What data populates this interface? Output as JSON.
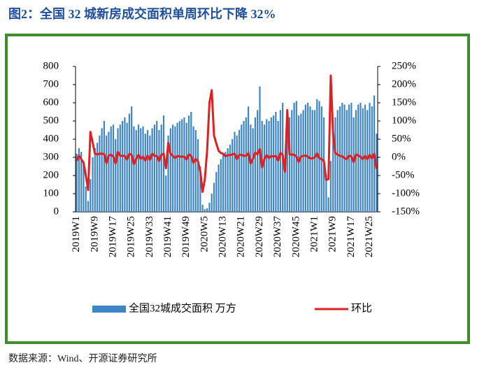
{
  "title": "图2：全国 32 城新房成交面积单周环比下降 32%",
  "source": "数据来源：Wind、开源证券研究所",
  "chart_data": {
    "type": "bar-line",
    "categories": [
      "2019W1",
      null,
      null,
      null,
      null,
      null,
      null,
      null,
      "2019W9",
      null,
      null,
      null,
      null,
      null,
      null,
      null,
      "2019W17",
      null,
      null,
      null,
      null,
      null,
      null,
      null,
      "2019W25",
      null,
      null,
      null,
      null,
      null,
      null,
      null,
      "2019W33",
      null,
      null,
      null,
      null,
      null,
      null,
      null,
      "2019W41",
      null,
      null,
      null,
      null,
      null,
      null,
      null,
      "2019W49",
      null,
      null,
      null,
      null,
      null,
      null,
      null,
      "2020W5",
      null,
      null,
      null,
      null,
      null,
      null,
      null,
      "2020W13",
      null,
      null,
      null,
      null,
      null,
      null,
      null,
      "2020W21",
      null,
      null,
      null,
      null,
      null,
      null,
      null,
      "2020W29",
      null,
      null,
      null,
      null,
      null,
      null,
      null,
      "2020W37",
      null,
      null,
      null,
      null,
      null,
      null,
      null,
      "2020W45",
      null,
      null,
      null,
      null,
      null,
      null,
      null,
      "2021W1",
      null,
      null,
      null,
      null,
      null,
      null,
      null,
      "2021W9",
      null,
      null,
      null,
      null,
      null,
      null,
      null,
      "2021W17",
      null,
      null,
      null,
      null,
      null,
      null,
      null,
      "2021W25",
      null,
      null,
      null
    ],
    "series": [
      {
        "name": "全国32城成交面积 万方",
        "type": "bar",
        "color": "#3d85c6",
        "values": [
          320,
          350,
          330,
          280,
          140,
          60,
          180,
          300,
          350,
          380,
          420,
          460,
          500,
          420,
          440,
          470,
          480,
          400,
          460,
          480,
          500,
          520,
          490,
          540,
          580,
          470,
          450,
          480,
          460,
          470,
          430,
          450,
          420,
          460,
          480,
          500,
          450,
          480,
          530,
          200,
          420,
          460,
          480,
          470,
          490,
          500,
          510,
          520,
          490,
          530,
          550,
          470,
          450,
          400,
          250,
          40,
          15,
          20,
          50,
          100,
          160,
          220,
          260,
          290,
          320,
          330,
          350,
          370,
          400,
          440,
          420,
          450,
          480,
          500,
          520,
          580,
          480,
          460,
          520,
          560,
          690,
          500,
          480,
          510,
          500,
          520,
          530,
          550,
          500,
          560,
          600,
          250,
          480,
          520,
          560,
          600,
          610,
          530,
          540,
          560,
          590,
          600,
          580,
          560,
          560,
          620,
          610,
          580,
          520,
          200,
          80,
          280,
          470,
          520,
          560,
          580,
          600,
          590,
          560,
          590,
          600,
          520,
          560,
          590,
          600,
          570,
          590,
          560,
          600,
          580,
          640,
          430
        ]
      },
      {
        "name": "环比",
        "type": "line",
        "axis": "y2",
        "color": "#e02020",
        "values": [
          -10,
          5,
          -5,
          -15,
          -50,
          -90,
          70,
          40,
          10,
          8,
          10,
          10,
          9,
          -16,
          5,
          7,
          2,
          -17,
          15,
          4,
          4,
          4,
          -6,
          10,
          7,
          -19,
          -4,
          7,
          -4,
          2,
          -9,
          5,
          -7,
          10,
          4,
          4,
          -10,
          7,
          10,
          -30,
          40,
          10,
          4,
          -2,
          4,
          2,
          2,
          2,
          -6,
          8,
          4,
          -15,
          -4,
          -11,
          -38,
          -95,
          -60,
          20,
          150,
          185,
          60,
          38,
          18,
          12,
          10,
          3,
          6,
          6,
          8,
          10,
          -5,
          7,
          7,
          4,
          4,
          12,
          -17,
          -4,
          13,
          8,
          23,
          -28,
          -4,
          6,
          -2,
          4,
          2,
          4,
          -9,
          12,
          7,
          -40,
          130,
          8,
          8,
          7,
          2,
          -13,
          2,
          4,
          5,
          2,
          -3,
          -3,
          0,
          11,
          -2,
          -5,
          -10,
          -62,
          -60,
          225,
          68,
          11,
          8,
          4,
          3,
          -2,
          -5,
          5,
          2,
          -13,
          8,
          5,
          2,
          -5,
          4,
          -5,
          7,
          -3,
          10,
          -32
        ]
      }
    ],
    "ylim": [
      0,
      800
    ],
    "yticks": [
      0,
      100,
      200,
      300,
      400,
      500,
      600,
      700,
      800
    ],
    "y2lim": [
      -150,
      250
    ],
    "y2ticks": [
      {
        "value": -150,
        "label": "-150%"
      },
      {
        "value": -100,
        "label": "-100%"
      },
      {
        "value": -50,
        "label": "-50%"
      },
      {
        "value": 0,
        "label": "0%"
      },
      {
        "value": 50,
        "label": "50%"
      },
      {
        "value": 100,
        "label": "100%"
      },
      {
        "value": 150,
        "label": "150%"
      },
      {
        "value": 200,
        "label": "200%"
      },
      {
        "value": 250,
        "label": "250%"
      }
    ],
    "legend": "bottom"
  }
}
